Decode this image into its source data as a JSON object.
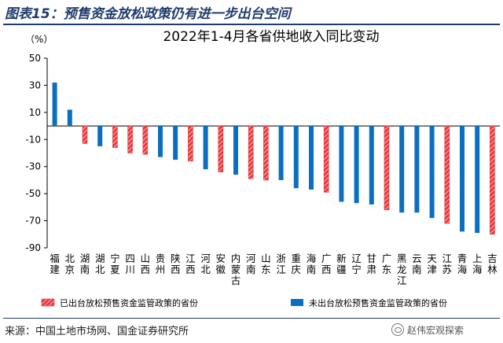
{
  "figure_title": "图表15：预售资金放松政策仍有进一步出台空间",
  "source": "来源：中国土地市场网、国金证券研究所",
  "watermark": "赵伟宏观探索",
  "colors": {
    "released": "#e8383d",
    "released_hatch": "#ffffff",
    "unreleased": "#0b6fc1",
    "title_blue": "#1f3c6e"
  },
  "chart_data": {
    "type": "bar",
    "title": "2022年1-4月各省供地收入同比变动",
    "ylabel": "（%）",
    "ylim": [
      -90,
      50
    ],
    "yticks": [
      50,
      30,
      10,
      -10,
      -30,
      -50,
      -70,
      -90
    ],
    "grid": false,
    "legend_position": "bottom",
    "categories": [
      "福建",
      "北京",
      "湖南",
      "湖北",
      "宁夏",
      "四川",
      "山西",
      "贵州",
      "陕西",
      "江西",
      "河北",
      "安徽",
      "内蒙古",
      "河南",
      "山东",
      "浙江",
      "重庆",
      "海南",
      "广西",
      "新疆",
      "辽宁",
      "甘肃",
      "广东",
      "黑龙江",
      "云南",
      "天津",
      "江苏",
      "青海",
      "上海",
      "吉林"
    ],
    "values": [
      32,
      12,
      -13,
      -15,
      -16,
      -20,
      -21,
      -23,
      -25,
      -26,
      -32,
      -34,
      -36,
      -39,
      -40,
      -40,
      -46,
      -47,
      -49,
      -56,
      -57,
      -58,
      -62,
      -64,
      -64,
      -68,
      -72,
      -78,
      -79,
      -80
    ],
    "released": [
      false,
      false,
      true,
      false,
      true,
      true,
      true,
      false,
      false,
      true,
      false,
      true,
      false,
      true,
      true,
      false,
      false,
      false,
      true,
      false,
      false,
      false,
      true,
      false,
      false,
      false,
      true,
      false,
      false,
      true
    ],
    "series": [
      {
        "name": "已出台放松预售资金监管政策的省份",
        "key": "released"
      },
      {
        "name": "未出台放松预售资金监管政策的省份",
        "key": "unreleased"
      }
    ]
  }
}
